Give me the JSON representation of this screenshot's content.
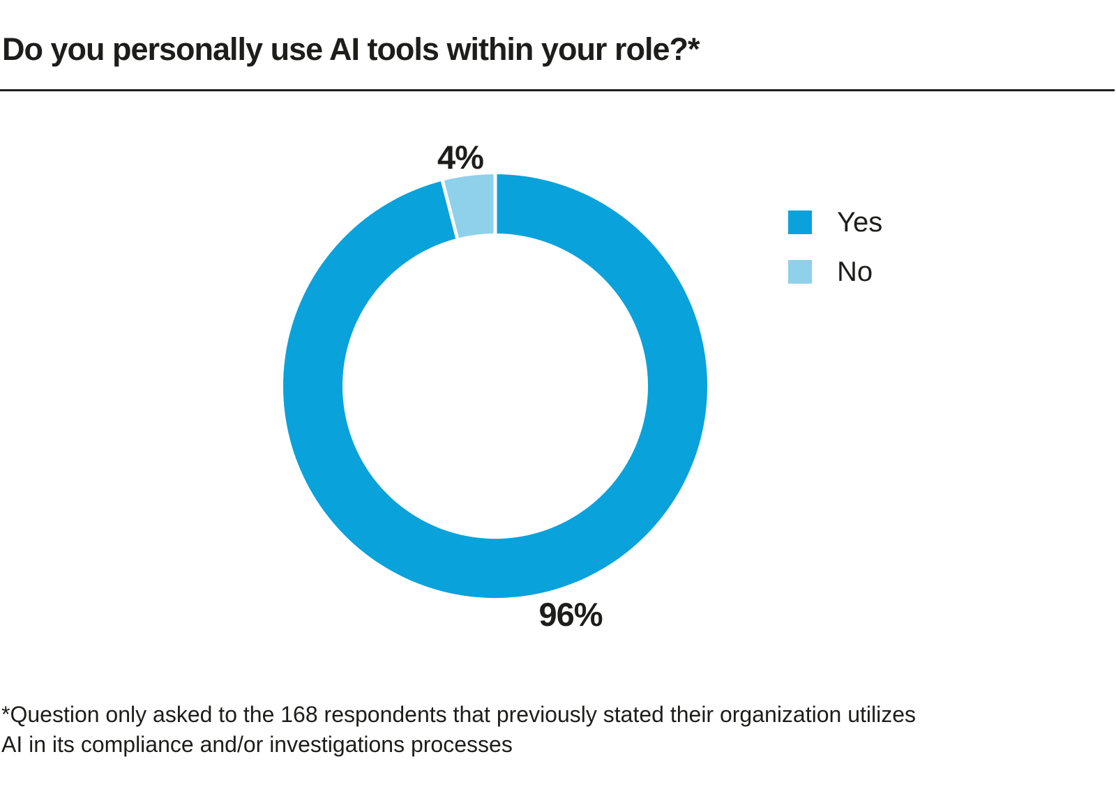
{
  "page": {
    "title": "Do you personally use AI tools within your role?*"
  },
  "chart_data": {
    "type": "pie",
    "subtype": "donut",
    "title": "Do you personally use AI tools within your role?*",
    "categories": [
      "Yes",
      "No"
    ],
    "values": [
      96,
      4
    ],
    "value_labels": [
      "96%",
      "4%"
    ],
    "colors": [
      "#09A2DB",
      "#8FD0EA"
    ],
    "separator_color": "#FFFFFF",
    "start_angle_deg": 0,
    "direction": "clockwise",
    "inner_radius_ratio": 0.72,
    "legend_position": "right",
    "legend": [
      "Yes",
      "No"
    ]
  },
  "legend": {
    "items": [
      {
        "label": "Yes",
        "color": "#09A2DB"
      },
      {
        "label": "No",
        "color": "#8FD0EA"
      }
    ]
  },
  "footnote": {
    "text": "*Question only asked to the 168 respondents that previously stated their organization utilizes AI in its compliance and/or investigations processes",
    "lines": [
      "*Question only asked to the 168 respondents that previously stated their organization utilizes",
      "AI in its compliance and/or investigations processes"
    ]
  },
  "colors": {
    "accent_dark_blue": "#09A2DB",
    "accent_light_blue": "#8FD0EA",
    "text": "#1D1D1B",
    "rule": "#1D1D1B",
    "background": "#FFFFFF"
  }
}
